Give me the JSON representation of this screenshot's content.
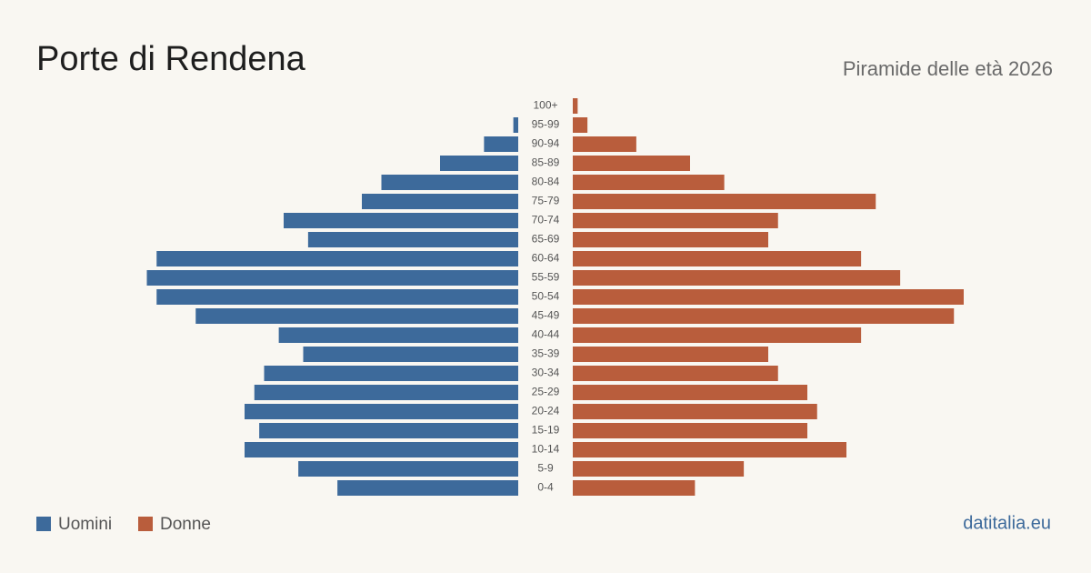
{
  "chart_data": {
    "type": "pyramid",
    "title": "Porte di Rendena",
    "subtitle": "Piramide delle età 2026",
    "source": "datitalia.eu",
    "categories": [
      "100+",
      "95-99",
      "90-94",
      "85-89",
      "80-84",
      "75-79",
      "70-74",
      "65-69",
      "60-64",
      "55-59",
      "50-54",
      "45-49",
      "40-44",
      "35-39",
      "30-34",
      "25-29",
      "20-24",
      "15-19",
      "10-14",
      "5-9",
      "0-4"
    ],
    "series": [
      {
        "name": "Uomini",
        "color": "#3d6a9b",
        "values": [
          0,
          1,
          7,
          16,
          28,
          32,
          48,
          43,
          74,
          76,
          74,
          66,
          49,
          44,
          52,
          54,
          56,
          53,
          56,
          45,
          37
        ]
      },
      {
        "name": "Donne",
        "color": "#b95d3c",
        "values": [
          1,
          3,
          13,
          24,
          31,
          62,
          42,
          40,
          59,
          67,
          80,
          78,
          59,
          40,
          42,
          48,
          50,
          48,
          56,
          35,
          25
        ]
      }
    ]
  }
}
